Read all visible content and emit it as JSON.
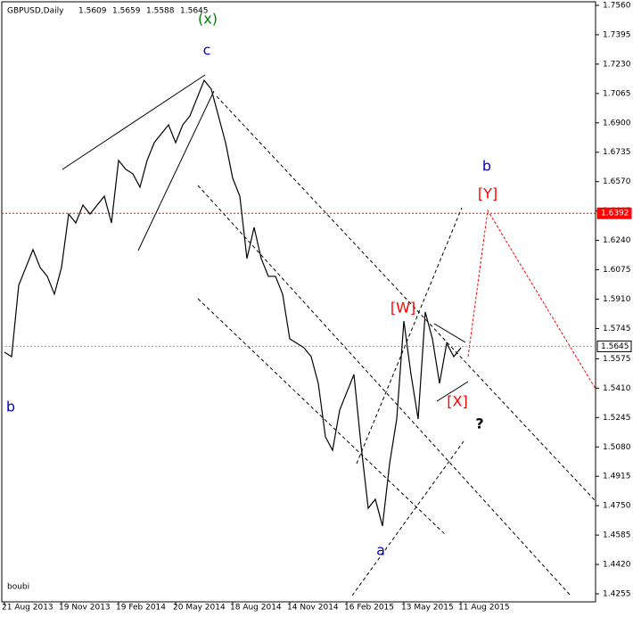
{
  "chart_data": {
    "type": "line",
    "title": "GBPUSD,Daily",
    "ohlc": [
      1.5609,
      1.5659,
      1.5588,
      1.5645
    ],
    "color": "#000000",
    "categories": [
      "21 Aug 2013",
      null,
      null,
      null,
      null,
      null,
      null,
      null,
      "19 Nov 2013",
      null,
      null,
      null,
      null,
      null,
      null,
      null,
      "19 Feb 2014",
      null,
      null,
      null,
      null,
      null,
      null,
      null,
      "20 May 2014",
      null,
      null,
      null,
      null,
      null,
      null,
      null,
      "18 Aug 2014",
      null,
      null,
      null,
      null,
      null,
      null,
      null,
      "14 Nov 2014",
      null,
      null,
      null,
      null,
      null,
      null,
      null,
      "16 Feb 2015",
      null,
      null,
      null,
      null,
      null,
      null,
      null,
      "13 May 2015",
      null,
      null,
      null,
      null,
      null,
      null,
      null,
      "11 Aug 2015"
    ],
    "values": [
      1.5612,
      1.5587,
      1.5988,
      1.6088,
      1.6188,
      1.6088,
      1.6038,
      1.5938,
      1.6088,
      1.6388,
      1.6338,
      1.6438,
      1.6388,
      1.6438,
      1.6488,
      1.6338,
      1.6689,
      1.6639,
      1.6614,
      1.6539,
      1.6689,
      1.6789,
      1.6839,
      1.6889,
      1.6789,
      1.6889,
      1.6939,
      1.7039,
      1.7139,
      1.7089,
      1.6939,
      1.6789,
      1.6589,
      1.6488,
      1.6138,
      1.6313,
      1.6138,
      1.6038,
      1.6038,
      1.5938,
      1.5687,
      1.5662,
      1.5637,
      1.5587,
      1.5437,
      1.5137,
      1.5061,
      1.5287,
      1.5387,
      1.5487,
      1.5087,
      1.4736,
      1.4786,
      1.4636,
      1.4986,
      1.5237,
      1.5787,
      1.5487,
      1.5237,
      1.5838,
      1.5687,
      1.5437,
      1.5662,
      1.5587,
      1.5637
    ],
    "ylim": [
      1.421,
      1.758
    ],
    "yticks": [
      {
        "value": 1.756,
        "label": "1.7560"
      },
      1.7395,
      {
        "value": 1.723,
        "label": "1.7230"
      },
      1.7065,
      {
        "value": 1.69,
        "label": "1.6900"
      },
      1.6735,
      {
        "value": 1.657,
        "label": "1.6570"
      },
      1.6405,
      {
        "value": 1.624,
        "label": "1.6240"
      },
      1.6075,
      {
        "value": 1.591,
        "label": "1.5910"
      },
      1.5745,
      1.5575,
      {
        "value": 1.541,
        "label": "1.5410"
      },
      1.5245,
      {
        "value": 1.508,
        "label": "1.5080"
      },
      1.4915,
      {
        "value": 1.475,
        "label": "1.4750"
      },
      1.4585,
      {
        "value": 1.442,
        "label": "1.4420"
      },
      1.4255
    ],
    "levels": [
      {
        "value": 1.6392,
        "color": "#ff0000"
      },
      {
        "value": 1.5645,
        "color": "#000000"
      }
    ],
    "annotations": [
      {
        "text": "(x)",
        "color": "#008000"
      },
      {
        "text": "c",
        "color": "#0000cc"
      },
      {
        "text": "b",
        "color": "#0000cc"
      },
      {
        "text": "a",
        "color": "#0000cc"
      },
      {
        "text": "b",
        "color": "#0000cc"
      },
      {
        "text": "[Y]",
        "color": "#ff0000"
      },
      {
        "text": "[W]",
        "color": "#ff0000"
      },
      {
        "text": "[X]",
        "color": "#ff0000"
      },
      {
        "text": "?",
        "color": "#000000"
      }
    ],
    "footer": "boubi"
  }
}
